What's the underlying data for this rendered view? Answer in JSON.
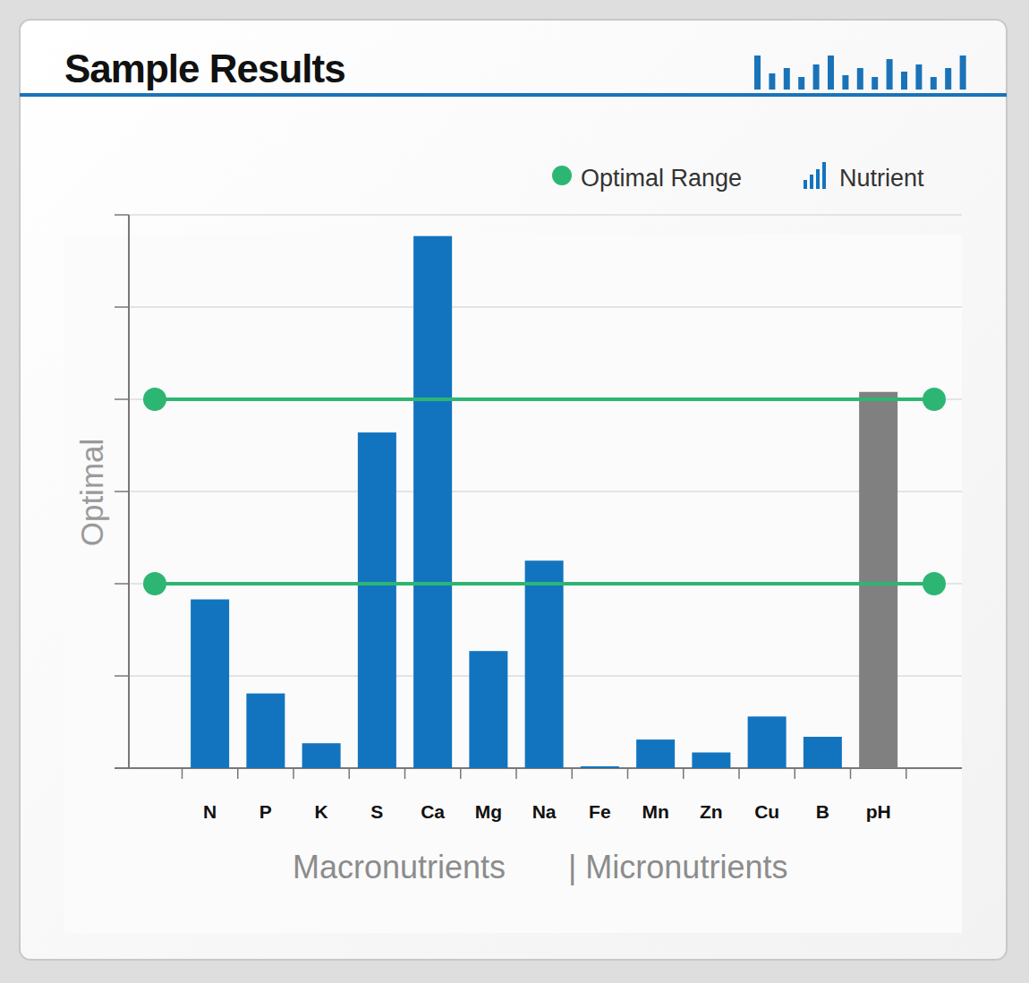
{
  "chart_data": {
    "type": "bar",
    "title": "Sample Results",
    "ylabel": "Optimal",
    "x_label_groups": [
      "Macronutrients",
      "| Micronutrients"
    ],
    "categories": [
      "N",
      "P",
      "K",
      "S",
      "Ca",
      "Mg",
      "Na",
      "Fe",
      "Mn",
      "Zn",
      "Cu",
      "B",
      "pH"
    ],
    "series": [
      {
        "name": "Nutrient",
        "color": "#1274bf",
        "values": [
          1.83,
          0.81,
          0.27,
          3.64,
          5.77,
          1.27,
          2.25,
          0.02,
          0.31,
          0.17,
          0.56,
          0.34,
          4.08
        ],
        "colors": [
          "#1274bf",
          "#1274bf",
          "#1274bf",
          "#1274bf",
          "#1274bf",
          "#1274bf",
          "#1274bf",
          "#1274bf",
          "#1274bf",
          "#1274bf",
          "#1274bf",
          "#1274bf",
          "#808080"
        ]
      }
    ],
    "optimal_range": {
      "name": "Optimal Range",
      "values": [
        2,
        4
      ],
      "color": "#2db673"
    },
    "ylim": [
      0,
      6
    ],
    "yticks": [
      0,
      1,
      2,
      3,
      4,
      5,
      6
    ],
    "grid": true,
    "tick_labels": "x",
    "legend": "top-right"
  }
}
